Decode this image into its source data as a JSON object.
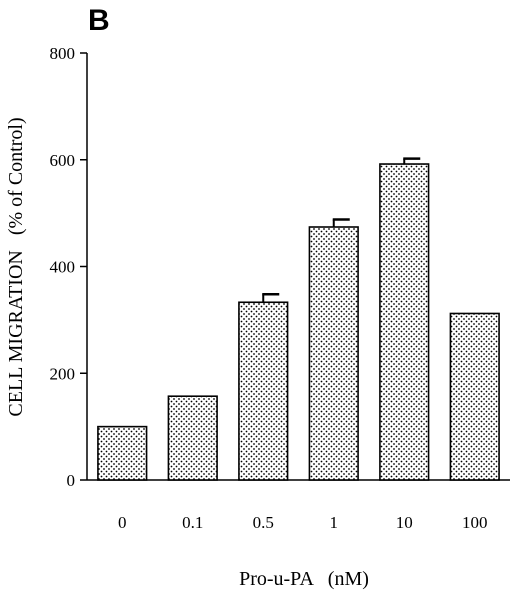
{
  "panel_label": "B",
  "chart_data": {
    "type": "bar",
    "categories": [
      "0",
      "0.1",
      "0.5",
      "1",
      "10",
      "100"
    ],
    "values": [
      100,
      157,
      333,
      474,
      592,
      312
    ],
    "errors": [
      0,
      0,
      15,
      14,
      10,
      0
    ],
    "xlabel": "Pro-u-PA   (nM)",
    "ylabel": "CELL MIGRATION   (% of Control)",
    "ylim": [
      0,
      800
    ],
    "yticks": [
      0,
      200,
      400,
      600,
      800
    ],
    "bar_fill": "dotted",
    "grid": false
  },
  "colors": {
    "ink": "#000000",
    "background": "#ffffff",
    "bar_fill": "#ffffff"
  }
}
